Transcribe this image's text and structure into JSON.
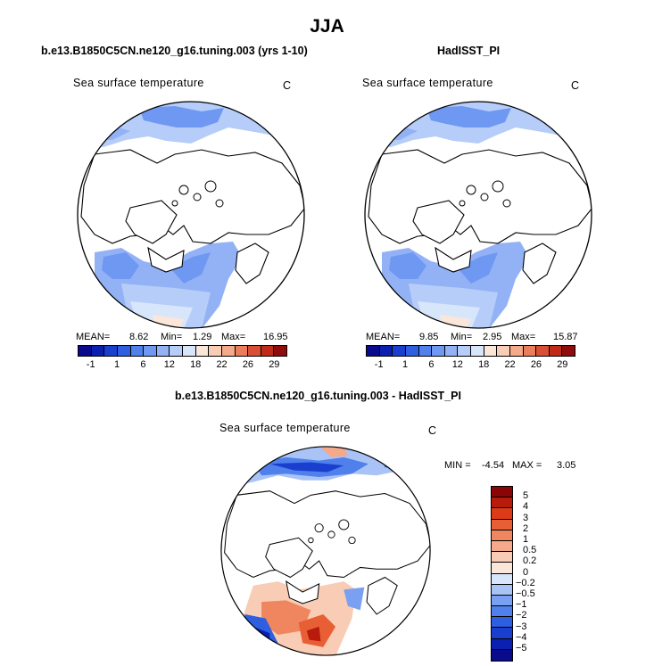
{
  "title": "JJA",
  "colors": {
    "abs_palette": [
      "#0a0a8c",
      "#0b1fb0",
      "#1a3fcf",
      "#2d5fe0",
      "#4f80ec",
      "#6f98f2",
      "#93b2f6",
      "#b6cdf9",
      "#d8e6fb",
      "#fbe6da",
      "#f8ccb5",
      "#f3a98a",
      "#ea7d5b",
      "#da4f34",
      "#c02a18",
      "#900c0c"
    ],
    "diff_palette": [
      "#0a0a8c",
      "#0b1fb0",
      "#1a3fcf",
      "#2d5fe0",
      "#4f80ec",
      "#7aa0f2",
      "#a9c3f7",
      "#d8e6fb",
      "#fbe6da",
      "#f8ccb5",
      "#f3a98a",
      "#ef8660",
      "#e95f35",
      "#dd3b18",
      "#b81a0c",
      "#8a0606"
    ],
    "land": "#ffffff",
    "coast": "#000000"
  },
  "chart_data": [
    {
      "type": "heatmap",
      "title": "b.e13.B1850C5CN.ne120_g16.tuning.003 (yrs 1-10)",
      "variable": "Sea surface temperature",
      "units": "C",
      "projection": "north polar stereographic",
      "stats": {
        "mean_label": "MEAN=",
        "mean": "8.62",
        "min_label": "Min=",
        "min": "1.29",
        "max_label": "Max=",
        "max": "16.95"
      },
      "colorbar_labels": [
        "-1",
        "1",
        "6",
        "12",
        "18",
        "22",
        "26",
        "29"
      ]
    },
    {
      "type": "heatmap",
      "title": "HadISST_PI",
      "variable": "Sea surface temperature",
      "units": "C",
      "projection": "north polar stereographic",
      "stats": {
        "mean_label": "MEAN=",
        "mean": "9.85",
        "min_label": "Min=",
        "min": "2.95",
        "max_label": "Max=",
        "max": "15.87"
      },
      "colorbar_labels": [
        "-1",
        "1",
        "6",
        "12",
        "18",
        "22",
        "26",
        "29"
      ]
    },
    {
      "type": "heatmap",
      "title": "b.e13.B1850C5CN.ne120_g16.tuning.003 - HadISST_PI",
      "variable": "Sea surface temperature",
      "units": "C",
      "projection": "north polar stereographic",
      "stats": {
        "min_label": "MIN =",
        "min": "-4.54",
        "max_label": "MAX =",
        "max": "3.05"
      },
      "colorbar_labels": [
        "5",
        "4",
        "3",
        "2",
        "1",
        "0.5",
        "0.2",
        "0",
        "−0.2",
        "−0.5",
        "−1",
        "−2",
        "−3",
        "−4",
        "−5"
      ]
    }
  ]
}
